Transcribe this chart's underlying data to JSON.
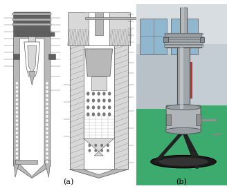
{
  "figsize": [
    3.28,
    2.83
  ],
  "dpi": 100,
  "background_color": "#ffffff",
  "label_a": "(a)",
  "label_b": "(b)",
  "label_fontsize": 8,
  "lc": "#555555",
  "mc": "#b8b8b8",
  "dc": "#787878",
  "hatch_c": "#999999",
  "white": "#ffffff",
  "black": "#000000",
  "light_gray": "#d8d8d8",
  "dark_gray": "#606060",
  "dot_color": "#cccccc",
  "bg_white": "#f8f8f8"
}
